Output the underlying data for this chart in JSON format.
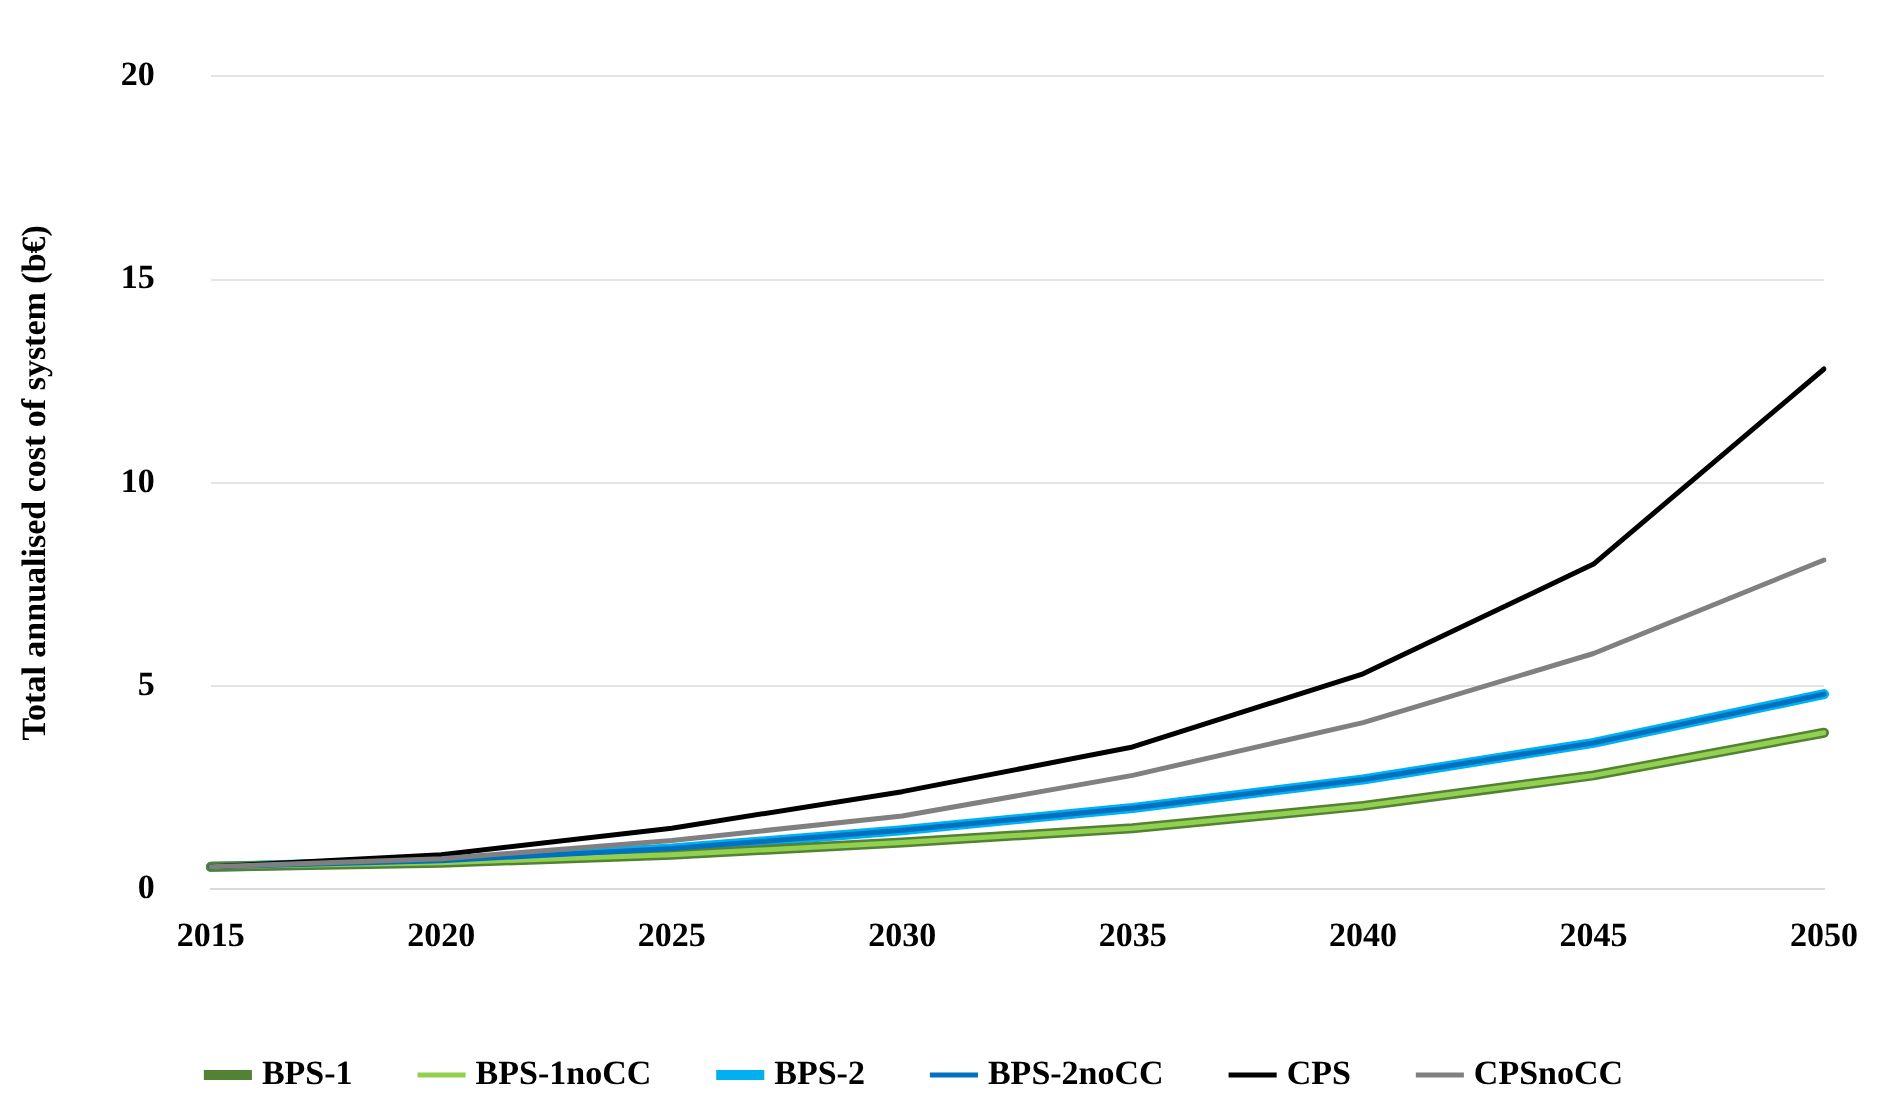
{
  "chart_data": {
    "type": "line",
    "ylabel": "Total annualised cost of system (b€)",
    "categories": [
      "2015",
      "2020",
      "2025",
      "2030",
      "2035",
      "2040",
      "2045",
      "2050"
    ],
    "ylim": [
      0,
      20
    ],
    "yticks": [
      0,
      5,
      10,
      15,
      20
    ],
    "grid": "y",
    "legend": "bottom",
    "marker": "none",
    "series": [
      {
        "name": "BPS-1",
        "color": "#548235",
        "values": [
          0.55,
          0.65,
          0.85,
          1.15,
          1.5,
          2.05,
          2.8,
          3.85
        ]
      },
      {
        "name": "BPS-1noCC",
        "color": "#92d050",
        "values": [
          0.55,
          0.65,
          0.85,
          1.15,
          1.5,
          2.05,
          2.8,
          3.85
        ]
      },
      {
        "name": "BPS-2",
        "color": "#00b0f0",
        "values": [
          0.55,
          0.7,
          1.0,
          1.45,
          2.0,
          2.7,
          3.6,
          4.8
        ]
      },
      {
        "name": "BPS-2noCC",
        "color": "#0070c0",
        "values": [
          0.55,
          0.7,
          1.0,
          1.45,
          2.0,
          2.7,
          3.6,
          4.8
        ]
      },
      {
        "name": "CPS",
        "color": "#000000",
        "values": [
          0.55,
          0.85,
          1.5,
          2.4,
          3.5,
          5.3,
          8.0,
          12.8
        ]
      },
      {
        "name": "CPSnoCC",
        "color": "#808080",
        "values": [
          0.55,
          0.75,
          1.2,
          1.8,
          2.8,
          4.1,
          5.8,
          8.1
        ]
      }
    ]
  }
}
